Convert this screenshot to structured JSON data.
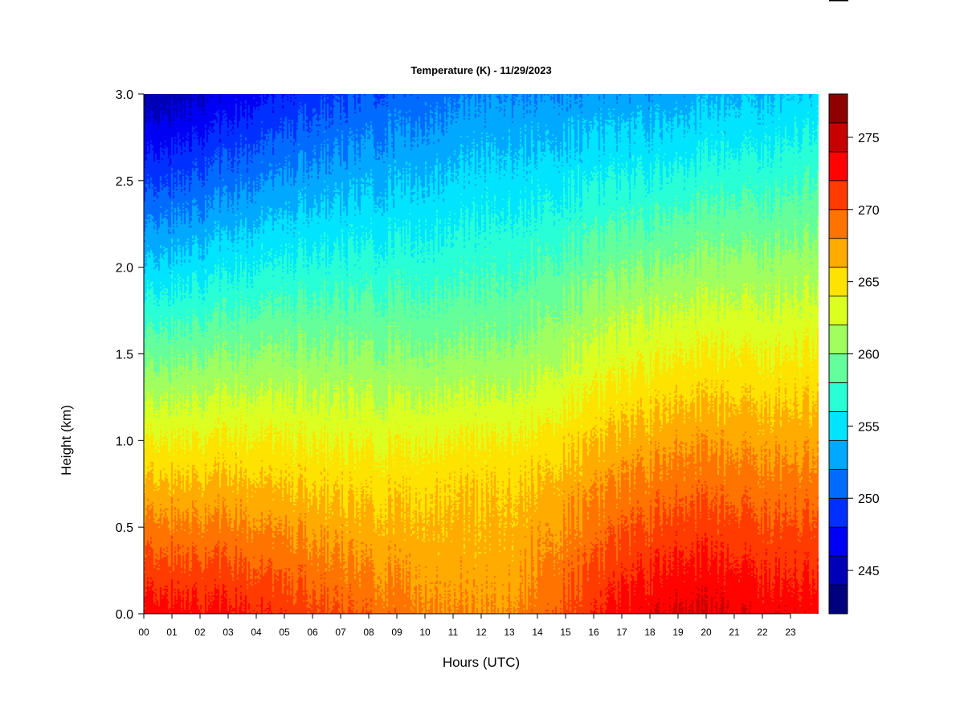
{
  "chart_data": {
    "type": "heatmap",
    "title": "Temperature (K) - 11/29/2023",
    "xlabel": "Hours (UTC)",
    "ylabel": "Height (km)",
    "x_ticks": [
      "00",
      "01",
      "02",
      "03",
      "04",
      "05",
      "06",
      "07",
      "08",
      "09",
      "10",
      "11",
      "12",
      "13",
      "14",
      "15",
      "16",
      "17",
      "18",
      "19",
      "20",
      "21",
      "22",
      "23"
    ],
    "x_range": [
      0,
      24
    ],
    "y_ticks": [
      "0.0",
      "0.5",
      "1.0",
      "1.5",
      "2.0",
      "2.5",
      "3.0"
    ],
    "y_range": [
      0,
      3.0
    ],
    "colorbar": {
      "levels": [
        242,
        244,
        246,
        248,
        250,
        252,
        254,
        256,
        258,
        260,
        262,
        264,
        266,
        268,
        270,
        272,
        274,
        276,
        278
      ],
      "tick_values": [
        245,
        250,
        255,
        260,
        265,
        270,
        275
      ],
      "tick_labels": [
        "245",
        "250",
        "255",
        "260",
        "265",
        "270",
        "275"
      ],
      "colors": [
        "#00007f",
        "#0000b7",
        "#0000f4",
        "#0030ff",
        "#006cff",
        "#00a8ff",
        "#00e4ff",
        "#28ffd6",
        "#64ff9a",
        "#a0ff5e",
        "#dcff22",
        "#ffe300",
        "#ffab00",
        "#ff7300",
        "#ff3b00",
        "#fe0300",
        "#c70000",
        "#8f0000"
      ]
    },
    "profile_model": {
      "surface_temperature_by_hour": [
        {
          "hour": 0,
          "value": 273.0
        },
        {
          "hour": 3,
          "value": 272.5
        },
        {
          "hour": 6,
          "value": 270.8
        },
        {
          "hour": 8,
          "value": 269.5
        },
        {
          "hour": 10,
          "value": 268.5
        },
        {
          "hour": 12,
          "value": 267.8
        },
        {
          "hour": 13,
          "value": 268.0
        },
        {
          "hour": 15,
          "value": 270.5
        },
        {
          "hour": 17,
          "value": 272.8
        },
        {
          "hour": 19,
          "value": 274.2
        },
        {
          "hour": 21,
          "value": 273.8
        },
        {
          "hour": 24,
          "value": 273.0
        }
      ],
      "top_temperature_by_hour": [
        {
          "hour": 0,
          "value": 244.0
        },
        {
          "hour": 6,
          "value": 249.0
        },
        {
          "hour": 12,
          "value": 252.0
        },
        {
          "hour": 18,
          "value": 252.5
        },
        {
          "hour": 24,
          "value": 254.5
        }
      ]
    }
  }
}
